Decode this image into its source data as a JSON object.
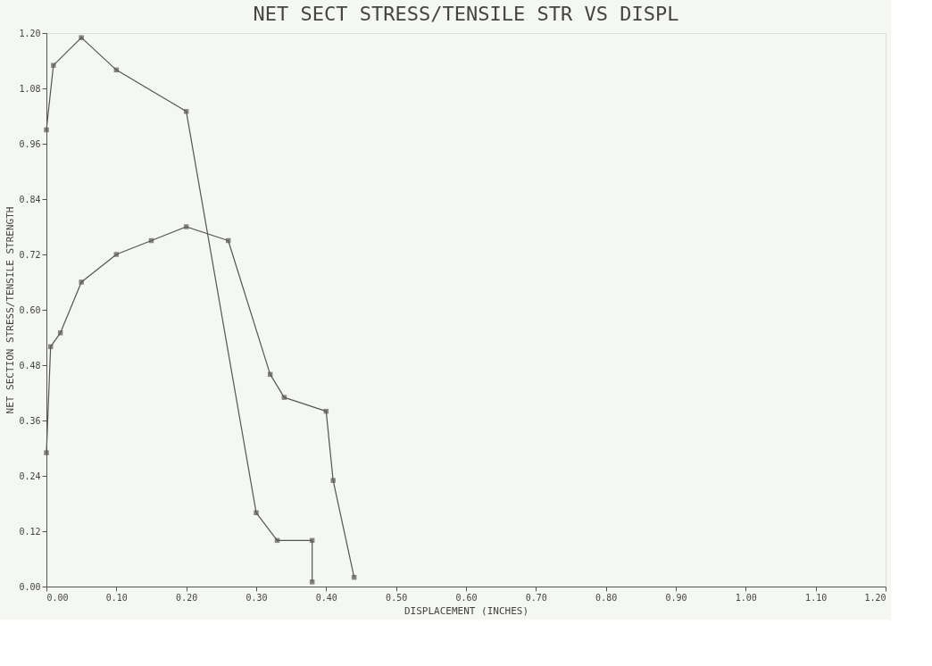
{
  "chart_data": {
    "type": "line",
    "title": "NET SECT STRESS/TENSILE STR VS DISPL",
    "xlabel": "DISPLACEMENT (INCHES)",
    "ylabel": "NET SECTION STRESS/TENSILE STRENGTH",
    "xlim": [
      0,
      1.2
    ],
    "ylim": [
      0,
      1.2
    ],
    "xticks": [
      {
        "value": 0,
        "label": "0.00"
      },
      {
        "value": 0.1,
        "label": "0.10"
      },
      {
        "value": 0.2,
        "label": "0.20"
      },
      {
        "value": 0.3,
        "label": "0.30"
      },
      {
        "value": 0.4,
        "label": "0.40"
      },
      {
        "value": 0.5,
        "label": "0.50"
      },
      {
        "value": 0.6,
        "label": "0.60"
      },
      {
        "value": 0.7,
        "label": "0.70"
      },
      {
        "value": 0.8,
        "label": "0.80"
      },
      {
        "value": 0.9,
        "label": "0.90"
      },
      {
        "value": 1.0,
        "label": "1.00"
      },
      {
        "value": 1.1,
        "label": "1.10"
      },
      {
        "value": 1.2,
        "label": "1.20"
      }
    ],
    "yticks": [
      {
        "value": 0,
        "label": "0.00"
      },
      0.12,
      0.24,
      0.36,
      0.48,
      {
        "value": 0.6,
        "label": "0.60"
      },
      0.72,
      0.84,
      0.96,
      1.08,
      {
        "value": 1.2,
        "label": "1.20"
      }
    ],
    "marker": "square",
    "line_style": "solid",
    "grid": false,
    "legend": false,
    "series": [
      {
        "color": "#555555",
        "x": [
          0,
          0.01,
          0.05,
          0.1,
          0.2,
          0.3,
          0.33,
          0.38,
          0.38
        ],
        "values": [
          0.99,
          1.13,
          1.19,
          1.12,
          1.03,
          0.16,
          0.1,
          0.1,
          0.01
        ]
      },
      {
        "color": "#555555",
        "x": [
          0,
          0.006,
          0.02,
          0.05,
          0.1,
          0.15,
          0.2,
          0.26,
          0.32,
          0.34,
          0.4,
          0.41,
          0.44
        ],
        "values": [
          0.29,
          0.52,
          0.55,
          0.66,
          0.72,
          0.75,
          0.78,
          0.75,
          0.46,
          0.41,
          0.38,
          0.23,
          0.02
        ]
      }
    ]
  }
}
